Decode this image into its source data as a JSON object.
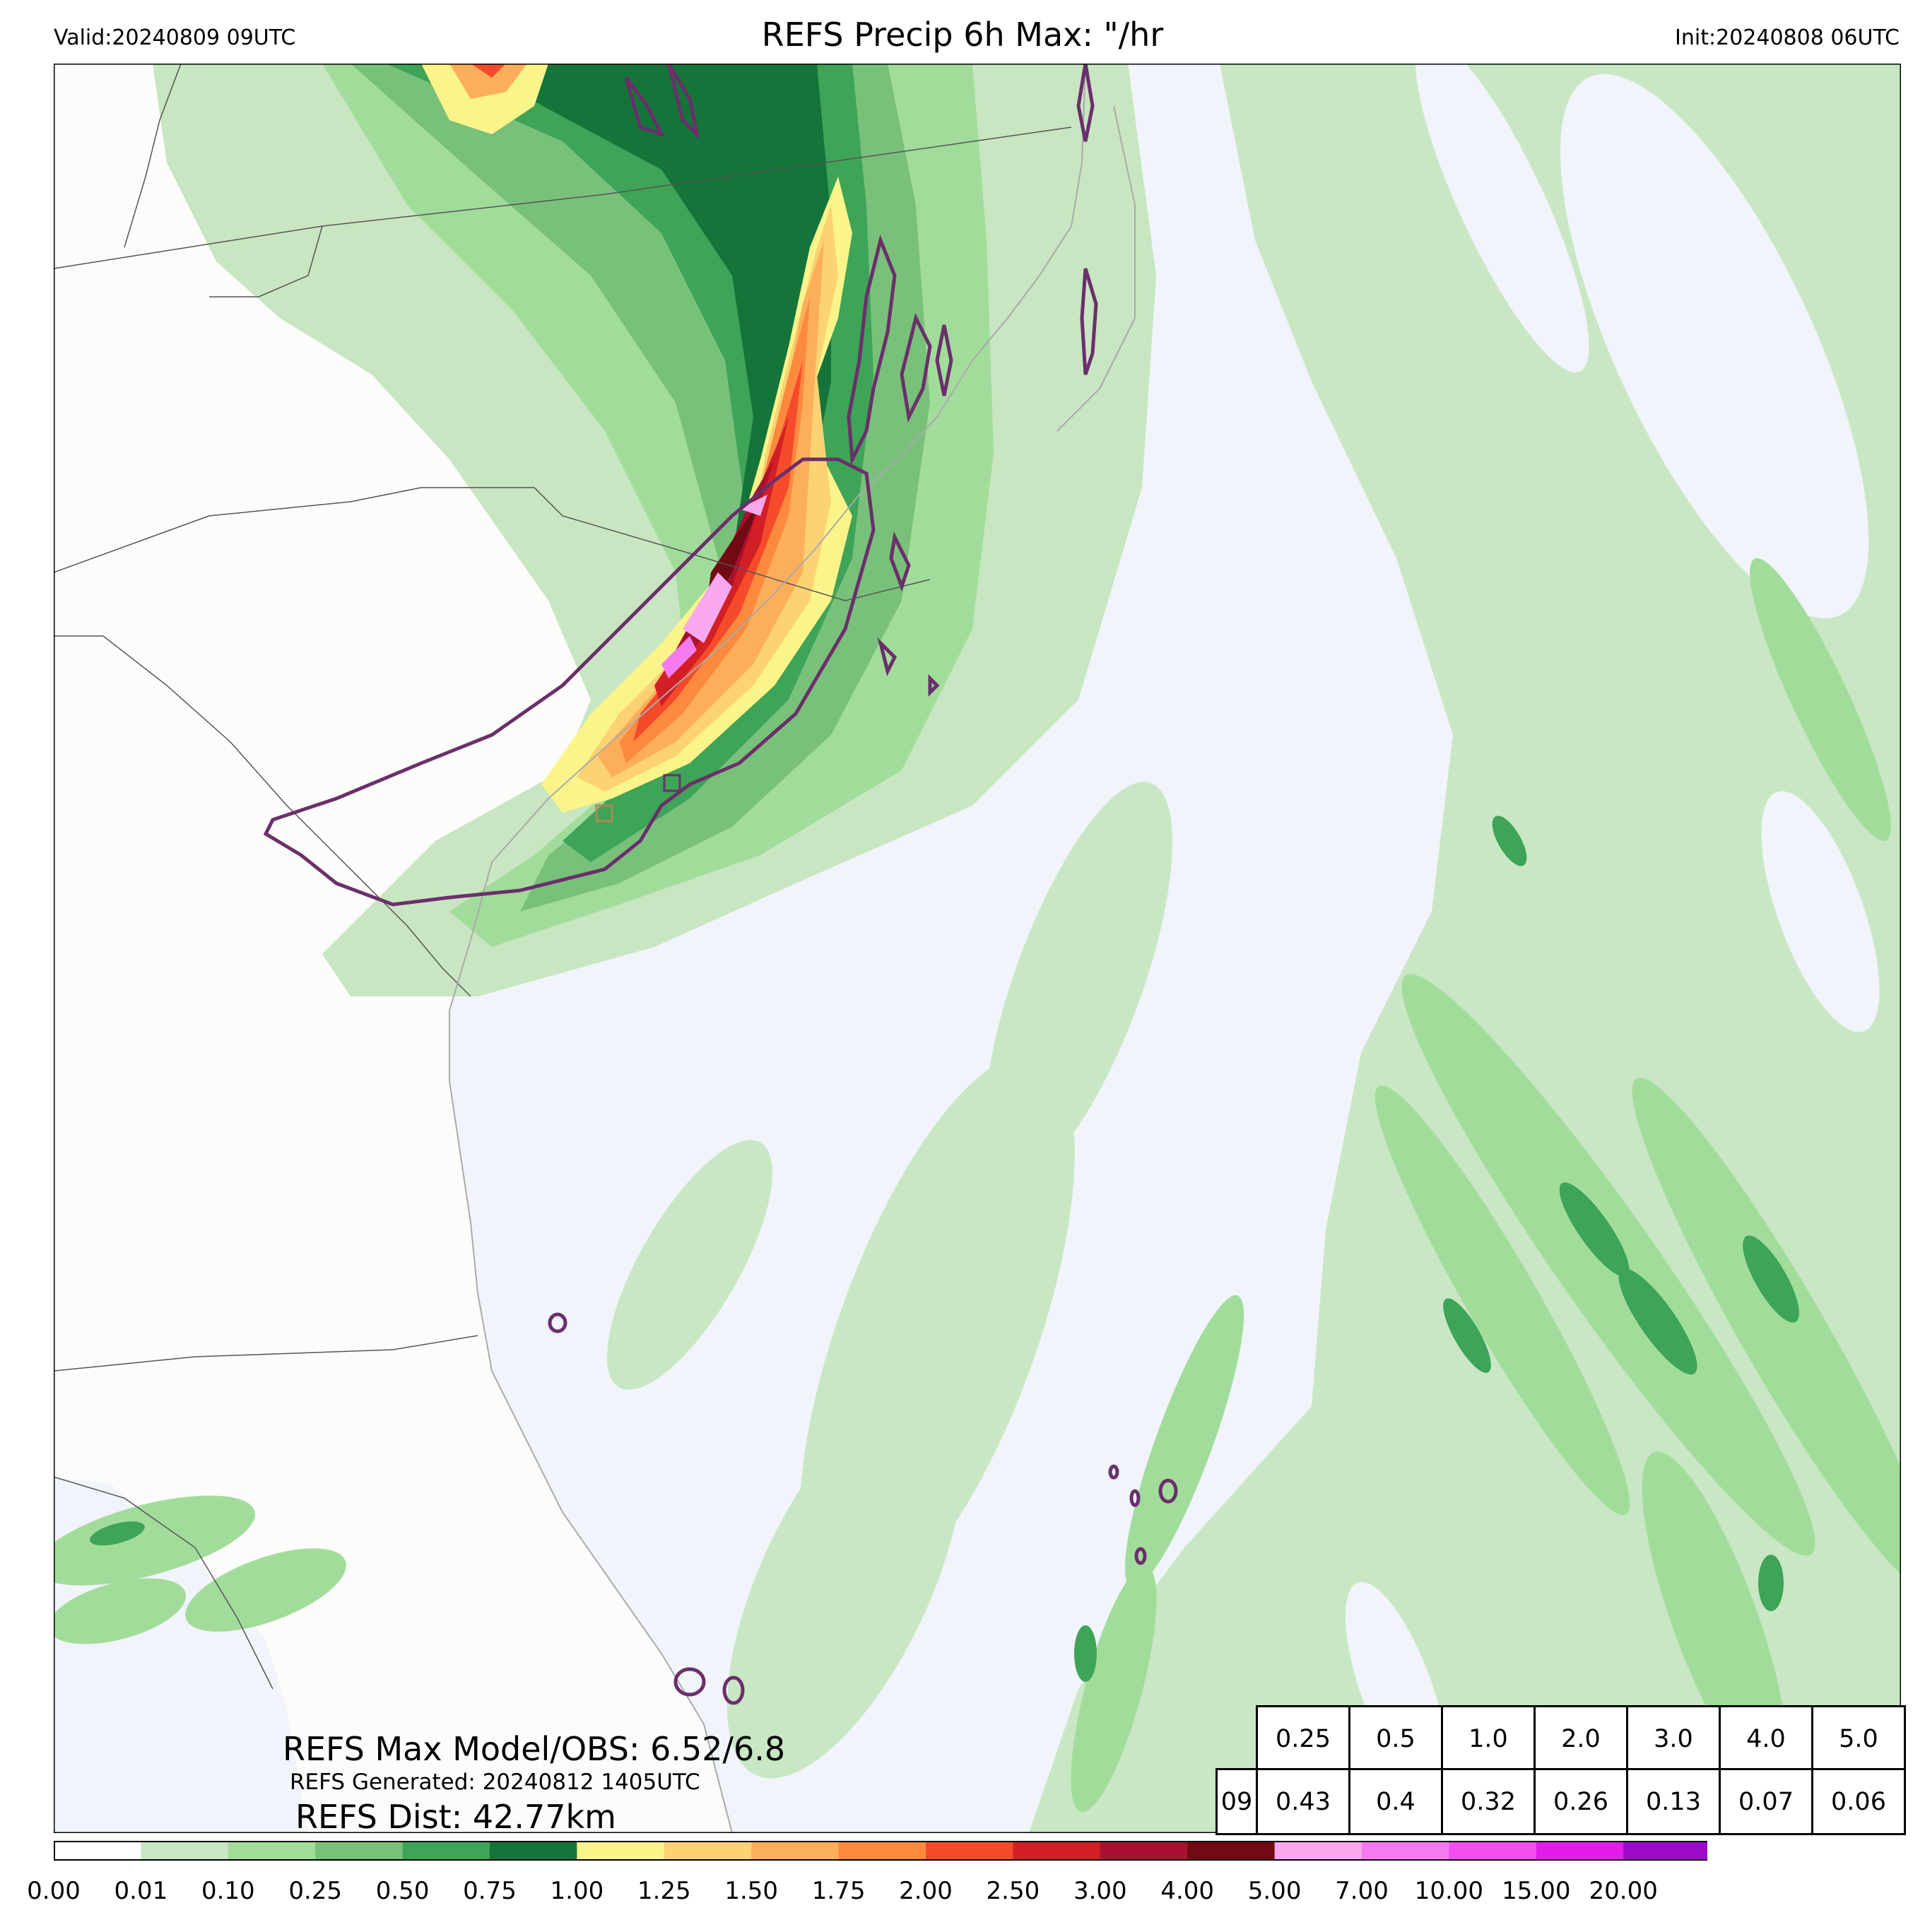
{
  "header": {
    "valid": "Valid:20240809 09UTC",
    "title": "REFS Precip 6h Max: \"/hr",
    "init": "Init:20240808 06UTC"
  },
  "stats": {
    "model_obs": "REFS Max Model/OBS: 6.52/6.8",
    "generated": "REFS Generated: 20240812 1405UTC",
    "distance": "REFS Dist: 42.77km"
  },
  "probability_table": {
    "thresholds": [
      "0.25",
      "0.5",
      "1.0",
      "2.0",
      "3.0",
      "4.0",
      "5.0"
    ],
    "hour": "09",
    "values": [
      "0.43",
      "0.4",
      "0.32",
      "0.26",
      "0.13",
      "0.07",
      "0.06"
    ]
  },
  "colorbar": {
    "labels": [
      "0.00",
      "0.01",
      "0.10",
      "0.25",
      "0.50",
      "0.75",
      "1.00",
      "1.25",
      "1.50",
      "1.75",
      "2.00",
      "2.50",
      "3.00",
      "4.00",
      "5.00",
      "7.00",
      "10.00",
      "15.00",
      "20.00"
    ],
    "colors": [
      "#ffffff",
      "#c7e6c1",
      "#a2dc9b",
      "#79c17b",
      "#3ea457",
      "#15743a",
      "#fbf48a",
      "#fcd274",
      "#fdae5a",
      "#fc8a3e",
      "#f64b2b",
      "#d21f25",
      "#a8112f",
      "#710a12",
      "#f9a8f0",
      "#f57af0",
      "#f24ef0",
      "#e21de8",
      "#9b0bcc"
    ],
    "extend_color": "#8a0aa8"
  },
  "map": {
    "land_color": "#fcfcfa",
    "ocean_color": "#f1f4fa",
    "border_color": "#555555",
    "contour_color": "#6b2f6b"
  }
}
